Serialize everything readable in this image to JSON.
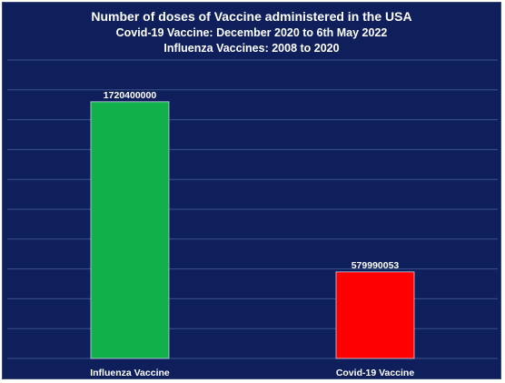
{
  "chart_data": {
    "type": "bar",
    "title": "Number of doses of Vaccine administered in the USA",
    "subtitle_lines": [
      "Covid-19 Vaccine: December 2020 to 6th May 2022",
      "Influenza Vaccines: 2008 to 2020"
    ],
    "categories": [
      "Influenza Vaccine",
      "Covid-19 Vaccine"
    ],
    "values": [
      1720400000,
      579990053
    ],
    "data_labels": [
      "1720400000",
      "579990053"
    ],
    "colors": [
      "#12b04b",
      "#ff0000"
    ],
    "background": "#0e1f5b",
    "grid": true,
    "ylim": [
      0,
      2000000000
    ],
    "legend": "none"
  }
}
